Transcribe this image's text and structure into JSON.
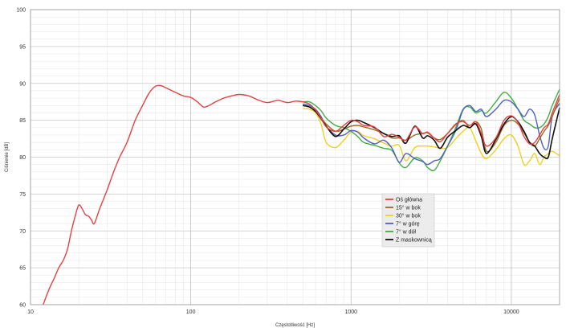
{
  "chart_data": {
    "type": "line",
    "title": "",
    "xlabel": "Częstotliwość [Hz]",
    "ylabel": "Ciśnienie [dB]",
    "x_scale": "log",
    "xlim": [
      10,
      20000
    ],
    "ylim": [
      60,
      100
    ],
    "grid": true,
    "legend_position": "center-right",
    "x_ticks": [
      10,
      100,
      1000,
      10000
    ],
    "x_tick_labels": [
      "10",
      "100",
      "1000",
      "10000"
    ],
    "y_ticks": [
      60,
      65,
      70,
      75,
      80,
      85,
      90,
      95,
      100
    ],
    "y_tick_labels": [
      "60",
      "65",
      "70",
      "75",
      "80",
      "85",
      "90",
      "95",
      "100"
    ],
    "series": [
      {
        "name": "Oś główna",
        "color": "#e84040",
        "x": [
          12,
          13,
          14,
          15,
          16,
          17,
          18,
          19,
          20,
          21,
          22,
          23,
          24,
          25,
          27,
          30,
          33,
          36,
          40,
          45,
          50,
          55,
          60,
          65,
          70,
          80,
          90,
          100,
          110,
          120,
          130,
          140,
          160,
          180,
          200,
          230,
          260,
          300,
          350,
          400,
          450,
          500,
          550,
          600,
          650,
          700,
          800,
          900,
          1000,
          1100,
          1200,
          1400,
          1600,
          1800,
          2000,
          2200,
          2500,
          2800,
          3000,
          3300,
          3600,
          4000,
          4500,
          5000,
          5500,
          6000,
          6500,
          7000,
          8000,
          9000,
          10000,
          11000,
          12000,
          13000,
          14000,
          15000,
          16000,
          17000,
          18000,
          20000
        ],
        "y": [
          60,
          62,
          63.5,
          65,
          66,
          67.5,
          70,
          72,
          73.5,
          73,
          72.2,
          72,
          71.5,
          71,
          73,
          75.5,
          78,
          80,
          82,
          85,
          87,
          88.7,
          89.6,
          89.7,
          89.4,
          88.8,
          88.3,
          88.1,
          87.5,
          86.8,
          87,
          87.4,
          88,
          88.3,
          88.5,
          88.3,
          87.8,
          87.4,
          87.7,
          87.4,
          87.6,
          87.5,
          87.2,
          86.4,
          85.3,
          84.1,
          83.5,
          84.3,
          85,
          84.8,
          84.3,
          84.1,
          82.8,
          83.1,
          82.7,
          82.3,
          84.1,
          83.2,
          83.4,
          82.6,
          82.1,
          83.2,
          84.5,
          84.8,
          84.3,
          84.8,
          83.2,
          81.5,
          82.6,
          85,
          85.6,
          84.7,
          82.8,
          81.8,
          82,
          83,
          84,
          84.5,
          86,
          88.5
        ]
      },
      {
        "name": "15° w bok",
        "color": "#9a6a22",
        "x": [
          500,
          550,
          600,
          650,
          700,
          800,
          900,
          1000,
          1100,
          1200,
          1400,
          1600,
          1800,
          2000,
          2200,
          2500,
          2800,
          3000,
          3300,
          3600,
          4000,
          4500,
          5000,
          5500,
          6000,
          6500,
          7000,
          8000,
          9000,
          10000,
          11000,
          12000,
          13000,
          14000,
          15000,
          16000,
          17000,
          18000,
          20000
        ],
        "y": [
          87,
          86.8,
          86.2,
          85.3,
          84.5,
          83.5,
          83.8,
          84.2,
          84.3,
          84.1,
          83.7,
          83.2,
          82.6,
          82.6,
          82.3,
          83,
          83.2,
          83.3,
          82.6,
          82.4,
          83.2,
          84.4,
          85,
          84,
          84.8,
          83.8,
          80.8,
          82,
          84.3,
          85,
          84.5,
          83.3,
          82,
          81.5,
          82.5,
          83.5,
          84.3,
          85.5,
          88
        ]
      },
      {
        "name": "30° w bok",
        "color": "#f0d020",
        "x": [
          500,
          550,
          600,
          650,
          700,
          800,
          900,
          1000,
          1100,
          1200,
          1400,
          1600,
          1800,
          2000,
          2200,
          2500,
          2800,
          3000,
          3300,
          3600,
          4000,
          4500,
          5000,
          5500,
          6000,
          6500,
          7000,
          8000,
          9000,
          10000,
          11000,
          12000,
          13000,
          14000,
          15000,
          16000,
          17000,
          18000,
          20000
        ],
        "y": [
          86.6,
          86.5,
          86,
          84.5,
          82,
          81.3,
          82.3,
          83.4,
          83.5,
          82.9,
          82.5,
          81.9,
          81.5,
          81.6,
          79.5,
          81.3,
          81.5,
          81.5,
          81.4,
          81.2,
          81.3,
          82.5,
          83.5,
          84,
          82.2,
          80.5,
          79.8,
          81,
          82.5,
          83,
          81.5,
          79,
          79.5,
          80.5,
          79,
          80,
          80.5,
          80.8,
          80.2
        ]
      },
      {
        "name": "7° w górę",
        "color": "#5060c0",
        "x": [
          500,
          550,
          600,
          650,
          700,
          800,
          900,
          1000,
          1100,
          1200,
          1400,
          1600,
          1800,
          2000,
          2200,
          2500,
          2800,
          3000,
          3300,
          3600,
          4000,
          4500,
          5000,
          5500,
          6000,
          6500,
          7000,
          8000,
          9000,
          10000,
          11000,
          12000,
          13000,
          14000,
          15000,
          16000,
          17000,
          18000,
          20000
        ],
        "y": [
          87.2,
          87,
          86.5,
          85.5,
          84.2,
          83,
          83,
          83.6,
          83.4,
          82.6,
          81.8,
          82.3,
          81.2,
          79.3,
          80.5,
          79.8,
          79.4,
          79,
          79.5,
          79.8,
          81.5,
          83.6,
          86.4,
          87,
          86.2,
          86.5,
          85.5,
          86.5,
          87.7,
          87.5,
          86.5,
          85.5,
          86.5,
          85.7,
          83,
          81.2,
          81.5,
          85.5,
          87.3
        ]
      },
      {
        "name": "7° w dół",
        "color": "#40b040",
        "x": [
          500,
          550,
          600,
          650,
          700,
          800,
          900,
          1000,
          1100,
          1200,
          1400,
          1600,
          1800,
          2000,
          2200,
          2500,
          2800,
          3000,
          3300,
          3600,
          4000,
          4500,
          5000,
          5500,
          6000,
          6500,
          7000,
          8000,
          9000,
          10000,
          11000,
          12000,
          13000,
          14000,
          15000,
          16000,
          17000,
          18000,
          20000
        ],
        "y": [
          87.5,
          87.5,
          87,
          86.3,
          85.3,
          84.3,
          84,
          83.5,
          82.8,
          82,
          81.6,
          81.2,
          80.9,
          79.2,
          78.6,
          79.9,
          79.5,
          78.6,
          78.2,
          79.5,
          81.5,
          84,
          86.5,
          86.8,
          86,
          86.3,
          86,
          87.5,
          88.8,
          88,
          86.5,
          85,
          84.5,
          84,
          84,
          84.5,
          85.5,
          87,
          89.2
        ]
      },
      {
        "name": "Z maskownicą",
        "color": "#111111",
        "x": [
          500,
          550,
          600,
          650,
          700,
          800,
          900,
          1000,
          1100,
          1200,
          1400,
          1600,
          1800,
          2000,
          2200,
          2500,
          2800,
          3000,
          3300,
          3600,
          4000,
          4500,
          5000,
          5500,
          6000,
          6500,
          7000,
          8000,
          9000,
          10000,
          11000,
          12000,
          13000,
          14000,
          15000,
          16000,
          17000,
          18000,
          20000
        ],
        "y": [
          87,
          86.8,
          86.2,
          85.2,
          84.2,
          82.8,
          83.8,
          84.8,
          85,
          84.7,
          84,
          83.2,
          82.8,
          82.9,
          81.9,
          84.2,
          82.6,
          82.9,
          82.3,
          81.2,
          82.7,
          83.6,
          84.3,
          84,
          84.5,
          82.8,
          80.5,
          82.4,
          84.5,
          85.5,
          84.8,
          83.5,
          82,
          81.5,
          80.5,
          80,
          80,
          82.5,
          86.7
        ]
      }
    ]
  }
}
